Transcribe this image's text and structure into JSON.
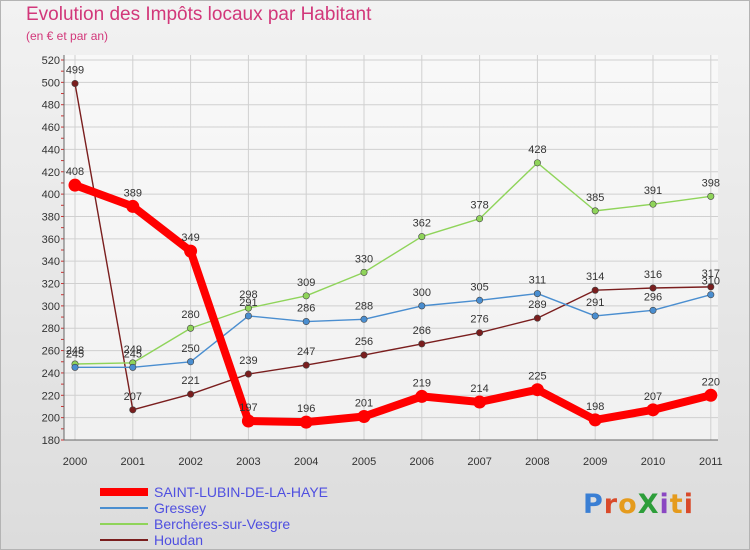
{
  "header": {
    "title": "Evolution des Impôts locaux par Habitant",
    "subtitle": "(en € et par an)"
  },
  "logo": {
    "text": "ProXiti",
    "letter_colors": [
      "#3a7fd4",
      "#d94a2a",
      "#e59b1d",
      "#2d9e3a",
      "#8a47c2",
      "#e59b1d",
      "#d94a2a"
    ]
  },
  "chart_data": {
    "type": "line",
    "x": [
      "2000",
      "2001",
      "2002",
      "2003",
      "2004",
      "2005",
      "2006",
      "2007",
      "2008",
      "2009",
      "2010",
      "2011"
    ],
    "ylim": [
      180,
      520
    ],
    "yticks": [
      180,
      200,
      220,
      240,
      260,
      280,
      300,
      320,
      340,
      360,
      380,
      400,
      420,
      440,
      460,
      480,
      500,
      520
    ],
    "grid": true,
    "legend_position": "bottom-left",
    "series": [
      {
        "name": "SAINT-LUBIN-DE-LA-HAYE",
        "color": "#ff0000",
        "values": [
          408,
          389,
          349,
          197,
          196,
          201,
          219,
          214,
          225,
          198,
          207,
          220
        ],
        "labels": [
          "408",
          "389",
          "349",
          "197",
          "196",
          "201",
          "219",
          "214",
          "225",
          "198",
          "207",
          "220"
        ]
      },
      {
        "name": "Gressey",
        "color": "#4a8ed0",
        "values": [
          245,
          245,
          250,
          291,
          286,
          288,
          300,
          305,
          311,
          291,
          296,
          310
        ],
        "labels": [
          "245",
          "245",
          "250",
          "291",
          "286",
          "288",
          "300",
          "305",
          "311",
          "291",
          "296",
          "310"
        ]
      },
      {
        "name": "Berchères-sur-Vesgre",
        "color": "#8fd45a",
        "values": [
          248,
          249,
          280,
          298,
          309,
          330,
          362,
          378,
          428,
          385,
          391,
          398
        ],
        "labels": [
          "248",
          "249",
          "280",
          "298",
          "309",
          "330",
          "362",
          "378",
          "428",
          "385",
          "391",
          "398"
        ]
      },
      {
        "name": "Houdan",
        "color": "#7a1e1e",
        "values": [
          499,
          207,
          221,
          239,
          247,
          256,
          266,
          276,
          289,
          314,
          316,
          317
        ],
        "labels": [
          "499",
          "207",
          "221",
          "239",
          "247",
          "256",
          "266",
          "276",
          "289",
          "314",
          "316",
          "317"
        ]
      }
    ]
  }
}
